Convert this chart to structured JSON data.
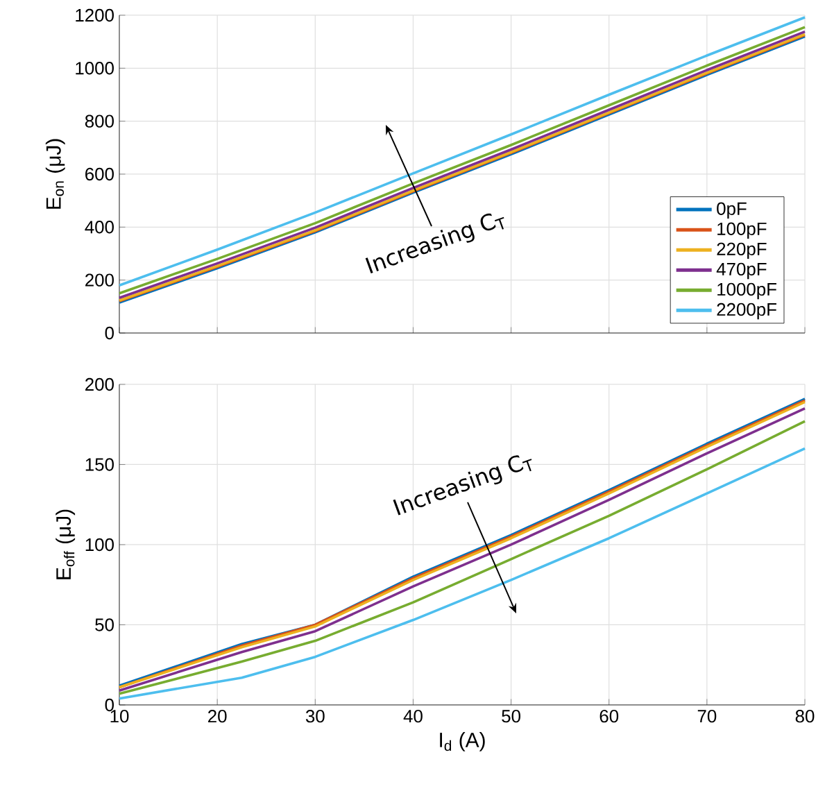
{
  "chart_data": [
    {
      "type": "line",
      "ylabel": "E$_{on}$ (μJ)",
      "x": [
        10,
        20,
        30,
        40,
        50,
        60,
        70,
        80
      ],
      "xlim": [
        10,
        80
      ],
      "xticks": [
        10,
        20,
        30,
        40,
        50,
        60,
        70,
        80
      ],
      "ylim": [
        0,
        1200
      ],
      "yticks": [
        0,
        200,
        400,
        600,
        800,
        1000,
        1200
      ],
      "tick_labels": "y",
      "grid": true,
      "legend": "bottom right",
      "series": [
        {
          "name": "0pF",
          "color": "#0072bd",
          "values": [
            115,
            245,
            380,
            530,
            675,
            825,
            975,
            1120
          ]
        },
        {
          "name": "100pF",
          "color": "#d95319",
          "values": [
            120,
            250,
            385,
            535,
            680,
            830,
            980,
            1125
          ]
        },
        {
          "name": "220pF",
          "color": "#edb120",
          "values": [
            123,
            253,
            388,
            538,
            683,
            833,
            983,
            1128
          ]
        },
        {
          "name": "470pF",
          "color": "#7e2f8e",
          "values": [
            133,
            263,
            398,
            548,
            693,
            843,
            993,
            1138
          ]
        },
        {
          "name": "1000pF",
          "color": "#77ac30",
          "values": [
            150,
            280,
            415,
            565,
            710,
            860,
            1010,
            1155
          ]
        },
        {
          "name": "2200pF",
          "color": "#4dbeee",
          "values": [
            180,
            315,
            455,
            603,
            750,
            900,
            1048,
            1192
          ]
        }
      ],
      "annotations": [
        "Increasing C$_{T}$"
      ]
    },
    {
      "type": "line",
      "xlabel": "I$_{d}$ (A)",
      "ylabel": "E$_{off}$ (μJ)",
      "x": [
        10,
        22.5,
        30,
        40,
        50,
        60,
        70,
        80
      ],
      "xlim": [
        10,
        80
      ],
      "xticks": [
        10,
        20,
        30,
        40,
        50,
        60,
        70,
        80
      ],
      "ylim": [
        0,
        200
      ],
      "yticks": [
        0,
        50,
        100,
        150,
        200
      ],
      "grid": true,
      "series": [
        {
          "color": "#0072bd",
          "values": [
            12,
            38,
            50,
            80,
            106,
            134,
            163,
            191
          ]
        },
        {
          "color": "#d95319",
          "values": [
            11,
            37,
            50,
            79,
            105,
            133,
            162,
            190
          ]
        },
        {
          "color": "#edb120",
          "values": [
            11,
            36,
            49,
            78,
            104,
            132,
            161,
            189
          ]
        },
        {
          "color": "#7e2f8e",
          "values": [
            9,
            33,
            46,
            74,
            100,
            128,
            157,
            185
          ]
        },
        {
          "color": "#77ac30",
          "values": [
            7,
            27,
            40,
            64,
            91,
            118,
            147,
            177
          ]
        },
        {
          "color": "#4dbeee",
          "values": [
            4,
            17,
            30,
            53,
            78,
            104,
            132,
            160
          ]
        }
      ],
      "annotations": [
        "Increasing C$_{T}$"
      ]
    }
  ]
}
